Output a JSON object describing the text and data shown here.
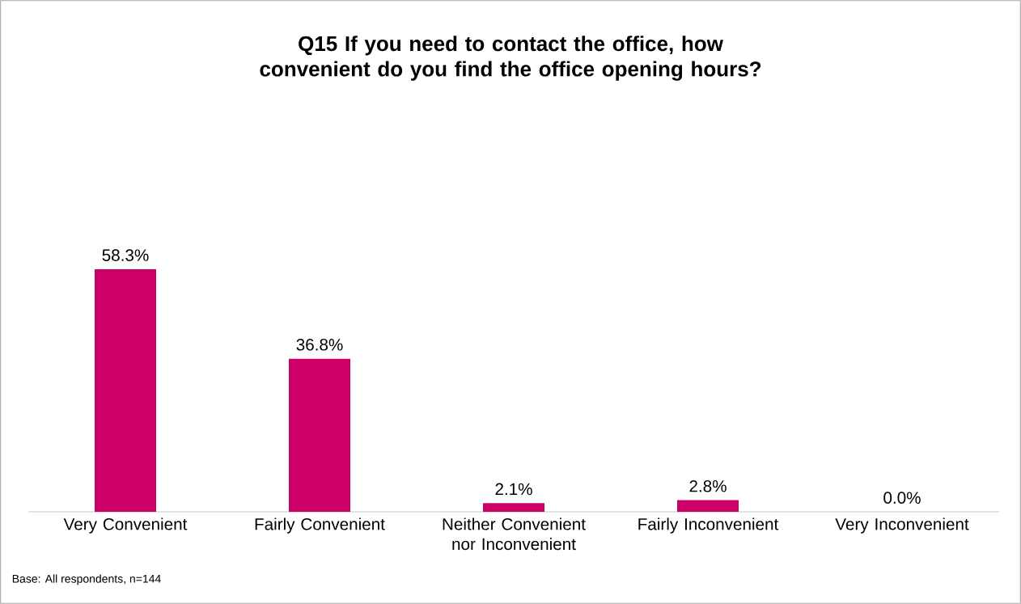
{
  "chart_data": {
    "type": "bar",
    "title": "Q15 If you need to contact the office, how convenient do you find the office opening hours?",
    "categories": [
      "Very Convenient",
      "Fairly Convenient",
      "Neither Convenient nor Inconvenient",
      "Fairly Inconvenient",
      "Very Inconvenient"
    ],
    "values": [
      58.3,
      36.8,
      2.1,
      2.8,
      0.0
    ],
    "value_labels": [
      "58.3%",
      "36.8%",
      "2.1%",
      "2.8%",
      "0.0%"
    ],
    "color": "#cc0066",
    "annotations": [
      "Base: All respondents, n=144"
    ]
  }
}
